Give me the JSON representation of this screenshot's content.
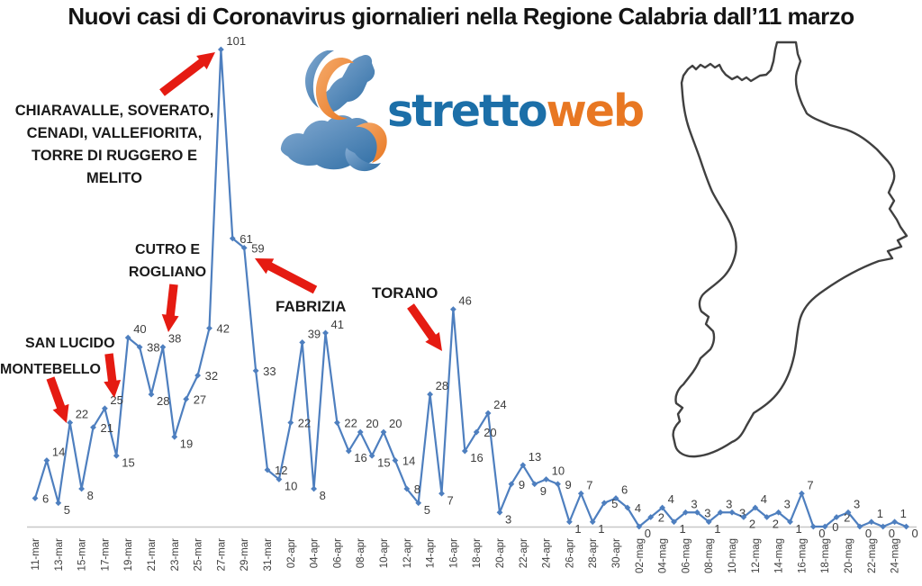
{
  "title": "Nuovi casi di Coronavirus giornalieri nella Regione Calabria dall’11 marzo",
  "logo": {
    "text_primary": "stretto",
    "text_secondary": "web",
    "color_primary": "#1c6fa8",
    "color_secondary": "#e87722"
  },
  "colors": {
    "series_line": "#4e7fbf",
    "data_label": "#3d3d3d",
    "arrow_red": "#e51b12",
    "axis_line": "#c8c8c8",
    "map_outline": "#404040"
  },
  "annotations": [
    {
      "id": "chiaravalle",
      "text": "CHIARAVALLE, SOVERATO,\nCENADI, VALLEFIORITA,\nTORRE DI RUGGERO E\nMELITO"
    },
    {
      "id": "cutro",
      "text": "CUTRO E\nROGLIANO"
    },
    {
      "id": "san-lucido",
      "text": "SAN LUCIDO"
    },
    {
      "id": "montebello",
      "text": "MONTEBELLO"
    },
    {
      "id": "fabrizia",
      "text": "FABRIZIA"
    },
    {
      "id": "torano",
      "text": "TORANO"
    }
  ],
  "chart_data": {
    "type": "line",
    "title": "Nuovi casi di Coronavirus giornalieri nella Regione Calabria dall’11 marzo",
    "x_start": "11-mar",
    "x_end": "25-mag",
    "x_tick_labels": [
      "11-mar",
      "13-mar",
      "15-mar",
      "17-mar",
      "19-mar",
      "21-mar",
      "23-mar",
      "25-mar",
      "27-mar",
      "29-mar",
      "31-mar",
      "02-apr",
      "04-apr",
      "06-apr",
      "08-apr",
      "10-apr",
      "12-apr",
      "14-apr",
      "16-apr",
      "18-apr",
      "20-apr",
      "22-apr",
      "24-apr",
      "26-apr",
      "28-apr",
      "30-apr",
      "02-mag",
      "04-mag",
      "06-mag",
      "08-mag",
      "10-mag",
      "12-mag",
      "14-mag",
      "16-mag",
      "18-mag",
      "20-mag",
      "22-mag",
      "24-mag"
    ],
    "values": [
      6,
      14,
      5,
      22,
      8,
      21,
      25,
      15,
      40,
      38,
      28,
      38,
      19,
      27,
      32,
      42,
      101,
      61,
      59,
      33,
      12,
      10,
      22,
      39,
      8,
      41,
      22,
      16,
      20,
      15,
      20,
      14,
      8,
      5,
      28,
      7,
      46,
      16,
      20,
      24,
      3,
      9,
      13,
      9,
      10,
      9,
      1,
      7,
      1,
      5,
      6,
      4,
      0,
      2,
      4,
      1,
      3,
      3,
      1,
      3,
      3,
      2,
      4,
      2,
      3,
      1,
      7,
      0,
      0,
      2,
      3,
      0,
      1,
      0,
      1,
      0
    ],
    "ylim": [
      0,
      101
    ],
    "grid": false,
    "legend": "none",
    "marker": "diamond",
    "data_labels": true
  }
}
